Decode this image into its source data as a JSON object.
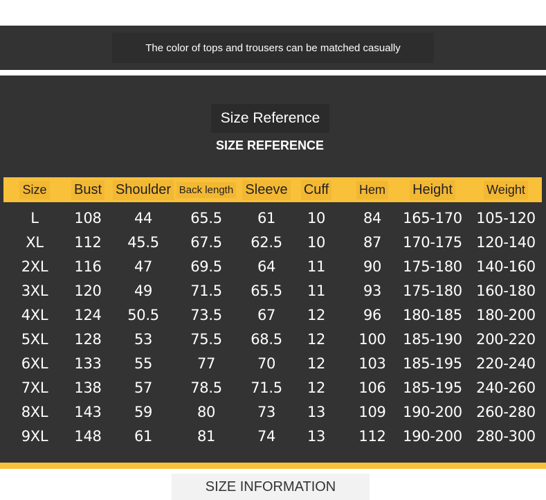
{
  "banner": {
    "text": "The color of tops and trousers can be matched casually"
  },
  "section": {
    "title": "Size Reference",
    "subtitle": "SIZE REFERENCE"
  },
  "table": {
    "headers": [
      "Size",
      "Bust",
      "Shoulder",
      "Back length",
      "Sleeve",
      "Cuff",
      "Hem",
      "Height",
      "Weight"
    ],
    "rows": [
      [
        "L",
        "108",
        "44",
        "65.5",
        "61",
        "10",
        "84",
        "165-170",
        "105-120"
      ],
      [
        "XL",
        "112",
        "45.5",
        "67.5",
        "62.5",
        "10",
        "87",
        "170-175",
        "120-140"
      ],
      [
        "2XL",
        "116",
        "47",
        "69.5",
        "64",
        "11",
        "90",
        "175-180",
        "140-160"
      ],
      [
        "3XL",
        "120",
        "49",
        "71.5",
        "65.5",
        "11",
        "93",
        "175-180",
        "160-180"
      ],
      [
        "4XL",
        "124",
        "50.5",
        "73.5",
        "67",
        "12",
        "96",
        "180-185",
        "180-200"
      ],
      [
        "5XL",
        "128",
        "53",
        "75.5",
        "68.5",
        "12",
        "100",
        "185-190",
        "200-220"
      ],
      [
        "6XL",
        "133",
        "55",
        "77",
        "70",
        "12",
        "103",
        "185-195",
        "220-240"
      ],
      [
        "7XL",
        "138",
        "57",
        "78.5",
        "71.5",
        "12",
        "106",
        "185-195",
        "240-260"
      ],
      [
        "8XL",
        "143",
        "59",
        "80",
        "73",
        "13",
        "109",
        "190-200",
        "260-280"
      ],
      [
        "9XL",
        "148",
        "61",
        "81",
        "74",
        "13",
        "112",
        "190-200",
        "280-300"
      ]
    ]
  },
  "footer": {
    "label": "SIZE INFORMATION"
  },
  "colors": {
    "panel": "#333333",
    "accent": "#f9c03a",
    "text": "#ffffff"
  }
}
